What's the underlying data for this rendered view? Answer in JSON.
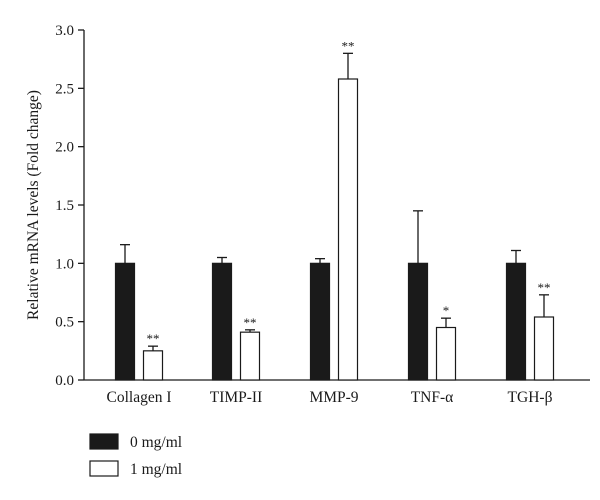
{
  "chart_data": {
    "type": "bar",
    "title": "",
    "xlabel": "",
    "ylabel": "Relative mRNA levels (Fold change)",
    "ylim": [
      0,
      3.0
    ],
    "yticks": [
      "0.0",
      "0.5",
      "1.0",
      "1.5",
      "2.0",
      "2.5",
      "3.0"
    ],
    "grid": false,
    "legend_position": "bottom-left",
    "categories": [
      "Collagen I",
      "TIMP-II",
      "MMP-9",
      "TNF-α",
      "TGH-β"
    ],
    "series": [
      {
        "name": "0 mg/ml",
        "color": "#1a1a1a",
        "values": [
          1.0,
          1.0,
          1.0,
          1.0,
          1.0
        ],
        "errors": [
          0.16,
          0.05,
          0.04,
          0.45,
          0.11
        ],
        "significance": [
          "",
          "",
          "",
          "",
          ""
        ]
      },
      {
        "name": "1 mg/ml",
        "color": "#ffffff",
        "values": [
          0.25,
          0.41,
          2.58,
          0.45,
          0.54
        ],
        "errors": [
          0.04,
          0.02,
          0.22,
          0.08,
          0.19
        ],
        "significance": [
          "**",
          "**",
          "**",
          "*",
          "**"
        ]
      }
    ]
  }
}
